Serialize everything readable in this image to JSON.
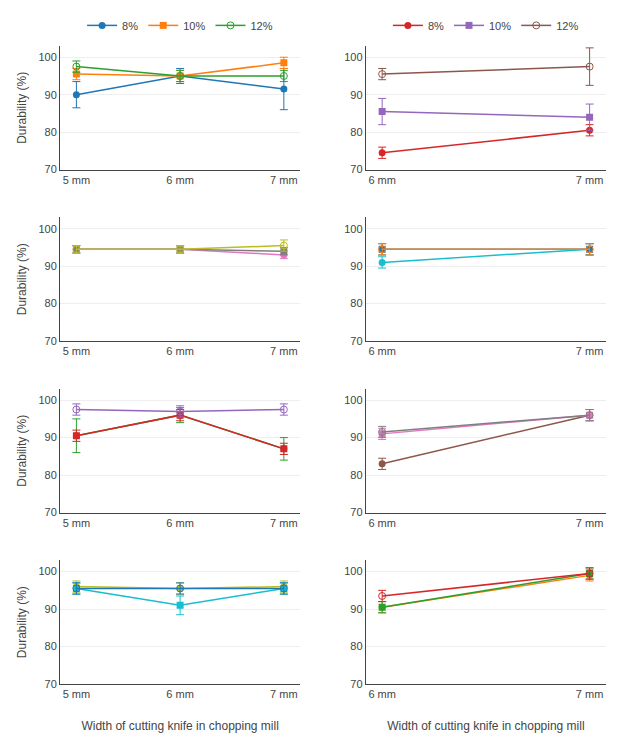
{
  "chart_data": [
    {
      "type": "line",
      "categories": [
        "5 mm",
        "6 mm",
        "7 mm"
      ],
      "series": [
        {
          "name": "8%",
          "marker": "circle",
          "values": [
            90.0,
            95.0,
            91.5
          ],
          "errors": [
            3.5,
            2.0,
            5.5
          ]
        },
        {
          "name": "10%",
          "marker": "square",
          "values": [
            95.5,
            95.0,
            98.5
          ],
          "errors": [
            1.5,
            1.5,
            1.5
          ]
        },
        {
          "name": "12%",
          "marker": "circle-open",
          "values": [
            97.5,
            95.0,
            95.0
          ],
          "errors": [
            1.5,
            1.5,
            1.5
          ]
        }
      ],
      "ylabel": "Durability (%)",
      "ylim": [
        70,
        103
      ],
      "yticks": [
        70,
        80,
        90,
        100
      ],
      "grid": true,
      "legend": "top"
    },
    {
      "type": "line",
      "categories": [
        "6 mm",
        "7 mm"
      ],
      "series": [
        {
          "name": "8%",
          "marker": "circle",
          "values": [
            74.5,
            80.5
          ],
          "errors": [
            1.5,
            1.5
          ]
        },
        {
          "name": "10%",
          "marker": "square",
          "values": [
            85.5,
            84.0
          ],
          "errors": [
            3.5,
            3.5
          ]
        },
        {
          "name": "12%",
          "marker": "circle-open",
          "values": [
            95.5,
            97.5
          ],
          "errors": [
            1.5,
            5.0
          ]
        }
      ],
      "ylim": [
        70,
        103
      ],
      "yticks": [
        70,
        80,
        90,
        100
      ],
      "grid": true,
      "legend": "top"
    },
    {
      "type": "line",
      "categories": [
        "5 mm",
        "6 mm",
        "7 mm"
      ],
      "series": [
        {
          "name": "8%",
          "marker": "circle",
          "values": [
            94.5,
            94.5,
            93.0
          ],
          "errors": [
            1.0,
            1.0,
            1.0
          ]
        },
        {
          "name": "10%",
          "marker": "square",
          "values": [
            94.5,
            94.5,
            94.0
          ],
          "errors": [
            1.0,
            1.0,
            1.0
          ]
        },
        {
          "name": "12%",
          "marker": "circle-open",
          "values": [
            94.5,
            94.5,
            95.5
          ],
          "errors": [
            1.0,
            1.0,
            1.5
          ]
        }
      ],
      "ylabel": "Durability (%)",
      "ylim": [
        70,
        103
      ],
      "yticks": [
        70,
        80,
        90,
        100
      ],
      "grid": true
    },
    {
      "type": "line",
      "categories": [
        "6 mm",
        "7 mm"
      ],
      "series": [
        {
          "name": "8%",
          "marker": "circle",
          "values": [
            91.0,
            94.5
          ],
          "errors": [
            1.5,
            1.5
          ]
        },
        {
          "name": "10%",
          "marker": "square",
          "values": [
            94.5,
            94.5
          ],
          "errors": [
            1.5,
            1.5
          ]
        },
        {
          "name": "12%",
          "marker": "circle-open",
          "values": [
            94.5,
            94.5
          ],
          "errors": [
            1.5,
            1.5
          ]
        }
      ],
      "ylim": [
        70,
        103
      ],
      "yticks": [
        70,
        80,
        90,
        100
      ],
      "grid": true
    },
    {
      "type": "line",
      "categories": [
        "5 mm",
        "6 mm",
        "7 mm"
      ],
      "series": [
        {
          "name": "8%",
          "marker": "circle",
          "values": [
            90.5,
            96.0,
            87.0
          ],
          "errors": [
            4.5,
            2.0,
            3.0
          ]
        },
        {
          "name": "10%",
          "marker": "square",
          "values": [
            90.5,
            96.0,
            87.0
          ],
          "errors": [
            1.5,
            1.5,
            1.5
          ]
        },
        {
          "name": "12%",
          "marker": "circle-open",
          "values": [
            97.5,
            97.0,
            97.5
          ],
          "errors": [
            1.5,
            1.5,
            1.5
          ]
        }
      ],
      "ylabel": "Durability (%)",
      "ylim": [
        70,
        103
      ],
      "yticks": [
        70,
        80,
        90,
        100
      ],
      "grid": true
    },
    {
      "type": "line",
      "categories": [
        "6 mm",
        "7 mm"
      ],
      "series": [
        {
          "name": "8%",
          "marker": "circle",
          "values": [
            83.0,
            96.0
          ],
          "errors": [
            1.5,
            1.5
          ]
        },
        {
          "name": "10%",
          "marker": "square",
          "values": [
            91.0,
            96.0
          ],
          "errors": [
            1.5,
            1.5
          ]
        },
        {
          "name": "12%",
          "marker": "circle-open",
          "values": [
            91.5,
            96.0
          ],
          "errors": [
            1.5,
            1.5
          ]
        }
      ],
      "ylim": [
        70,
        103
      ],
      "yticks": [
        70,
        80,
        90,
        100
      ],
      "grid": true
    },
    {
      "type": "line",
      "categories": [
        "5 mm",
        "6 mm",
        "7 mm"
      ],
      "series": [
        {
          "name": "8%",
          "marker": "circle",
          "values": [
            96.0,
            95.5,
            96.0
          ],
          "errors": [
            1.5,
            1.5,
            1.5
          ]
        },
        {
          "name": "10%",
          "marker": "square",
          "values": [
            95.5,
            91.0,
            95.5
          ],
          "errors": [
            1.5,
            2.5,
            1.5
          ]
        },
        {
          "name": "12%",
          "marker": "circle-open",
          "values": [
            95.5,
            95.5,
            95.5
          ],
          "errors": [
            1.5,
            1.5,
            1.5
          ]
        }
      ],
      "ylabel": "Durability (%)",
      "xlabel": "Width of cutting knife in chopping mill",
      "ylim": [
        70,
        103
      ],
      "yticks": [
        70,
        80,
        90,
        100
      ],
      "grid": true
    },
    {
      "type": "line",
      "categories": [
        "6 mm",
        "7 mm"
      ],
      "series": [
        {
          "name": "8%",
          "marker": "circle",
          "values": [
            90.5,
            99.0
          ],
          "errors": [
            1.5,
            1.5
          ]
        },
        {
          "name": "10%",
          "marker": "square",
          "values": [
            90.5,
            99.5
          ],
          "errors": [
            1.5,
            1.5
          ]
        },
        {
          "name": "12%",
          "marker": "circle-open",
          "values": [
            93.5,
            99.5
          ],
          "errors": [
            1.5,
            1.5
          ]
        }
      ],
      "xlabel": "Width of cutting knife in chopping mill",
      "ylim": [
        70,
        103
      ],
      "yticks": [
        70,
        80,
        90,
        100
      ],
      "grid": true
    }
  ]
}
